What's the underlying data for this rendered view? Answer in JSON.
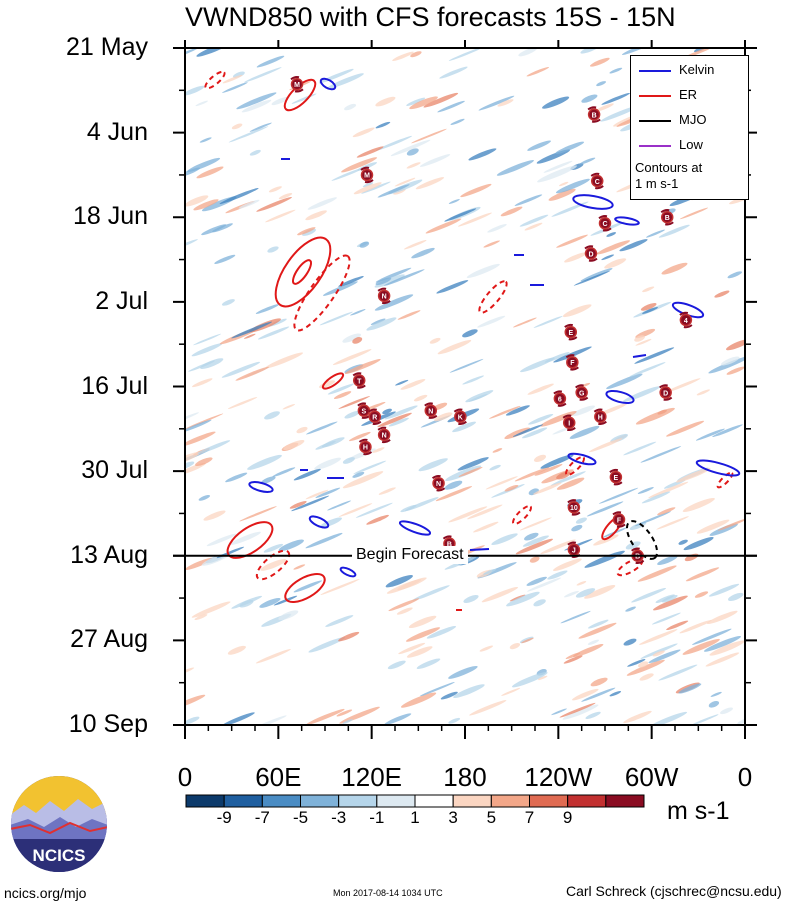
{
  "title": "VWND850 with CFS forecasts  15S - 15N",
  "chart_data": {
    "type": "heatmap",
    "title": "VWND850 with CFS forecasts  15S - 15N",
    "xaxis": {
      "ticks": [
        "0",
        "60E",
        "120E",
        "180",
        "120W",
        "60W",
        "0"
      ],
      "range_deg_east": [
        0,
        360
      ]
    },
    "yaxis": {
      "ticks": [
        "21 May",
        "4 Jun",
        "18 Jun",
        "2 Jul",
        "16 Jul",
        "30 Jul",
        "13 Aug",
        "27 Aug",
        "10 Sep"
      ],
      "range": [
        "2017-05-21",
        "2017-09-10"
      ],
      "direction": "time increases downward"
    },
    "colorbar": {
      "units": "m s-1",
      "levels": [
        -9,
        -7,
        -5,
        -3,
        -1,
        1,
        3,
        5,
        7,
        9
      ],
      "tick_labels": [
        "-9",
        "-7",
        "-5",
        "-3",
        "-1",
        "1",
        "3",
        "5",
        "7",
        "9"
      ],
      "colors": [
        "#0c3a6b",
        "#1f5fa0",
        "#4a8cc4",
        "#7fb2d9",
        "#b5d5ea",
        "#dde9f1",
        "#ffffff",
        "#fbd6c2",
        "#f3a789",
        "#e06b52",
        "#c23030",
        "#8a0c22"
      ]
    },
    "forecast_start": "2017-08-13",
    "forecast_label": "Begin Forecast",
    "legend": {
      "placement": "top-right",
      "entries": [
        {
          "name": "Kelvin",
          "color": "#1a1adc"
        },
        {
          "name": "ER",
          "color": "#e01818"
        },
        {
          "name": "MJO",
          "color": "#000000"
        },
        {
          "name": "Low",
          "color": "#9a30c8"
        }
      ],
      "note": [
        "Contours at",
        "1 m s-1"
      ]
    },
    "storms": [
      {
        "label": "M",
        "lon": 72,
        "date": "2017-05-27"
      },
      {
        "label": "B",
        "lon": 263,
        "date": "2017-06-01"
      },
      {
        "label": "M",
        "lon": 117,
        "date": "2017-06-11"
      },
      {
        "label": "C",
        "lon": 265,
        "date": "2017-06-12"
      },
      {
        "label": "B",
        "lon": 310,
        "date": "2017-06-18"
      },
      {
        "label": "C",
        "lon": 270,
        "date": "2017-06-19"
      },
      {
        "label": "D",
        "lon": 261,
        "date": "2017-06-24"
      },
      {
        "label": "N",
        "lon": 128,
        "date": "2017-07-01"
      },
      {
        "label": "4",
        "lon": 322,
        "date": "2017-07-05"
      },
      {
        "label": "E",
        "lon": 248,
        "date": "2017-07-07"
      },
      {
        "label": "F",
        "lon": 249,
        "date": "2017-07-12"
      },
      {
        "label": "T",
        "lon": 112,
        "date": "2017-07-15"
      },
      {
        "label": "G",
        "lon": 255,
        "date": "2017-07-17"
      },
      {
        "label": "6",
        "lon": 241,
        "date": "2017-07-18"
      },
      {
        "label": "D",
        "lon": 309,
        "date": "2017-07-17"
      },
      {
        "label": "S",
        "lon": 115,
        "date": "2017-07-20"
      },
      {
        "label": "R",
        "lon": 122,
        "date": "2017-07-21"
      },
      {
        "label": "N",
        "lon": 158,
        "date": "2017-07-20"
      },
      {
        "label": "K",
        "lon": 177,
        "date": "2017-07-21"
      },
      {
        "label": "H",
        "lon": 267,
        "date": "2017-07-21"
      },
      {
        "label": "I",
        "lon": 247,
        "date": "2017-07-22"
      },
      {
        "label": "N",
        "lon": 128,
        "date": "2017-07-24"
      },
      {
        "label": "H",
        "lon": 116,
        "date": "2017-07-26"
      },
      {
        "label": "N",
        "lon": 163,
        "date": "2017-08-01"
      },
      {
        "label": "E",
        "lon": 277,
        "date": "2017-07-31"
      },
      {
        "label": "10",
        "lon": 250,
        "date": "2017-08-05"
      },
      {
        "label": "F",
        "lon": 279,
        "date": "2017-08-07"
      },
      {
        "label": "B",
        "lon": 170,
        "date": "2017-08-11"
      },
      {
        "label": "J",
        "lon": 250,
        "date": "2017-08-12"
      },
      {
        "label": "B",
        "lon": 291,
        "date": "2017-08-13"
      }
    ]
  },
  "footer": {
    "left": "ncics.org/mjo",
    "middle": "Mon 2017-08-14 1034 UTC",
    "right": "Carl Schreck (cjschrec@ncsu.edu)"
  },
  "logo_text": "NCICS"
}
